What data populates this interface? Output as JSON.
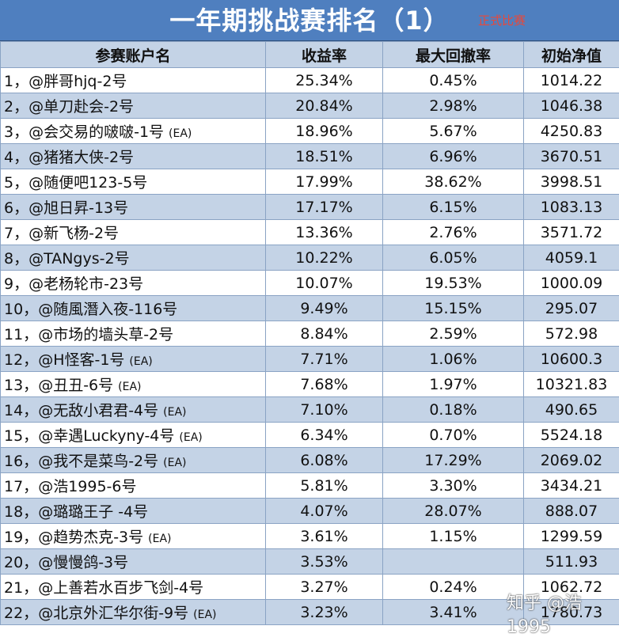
{
  "title": "一年期挑战赛排名（1）",
  "title_tag": "正式比赛",
  "columns": [
    "参赛账户名",
    "收益率",
    "最大回撤率",
    "初始净值"
  ],
  "rows": [
    {
      "rank": "1，",
      "account": "@胖哥hjq-2号",
      "ea": "",
      "return": "25.34%",
      "max_drawdown": "0.45%",
      "initial_nav": "1014.22"
    },
    {
      "rank": "2，",
      "account": "@单刀赴会-2号",
      "ea": "",
      "return": "20.84%",
      "max_drawdown": "2.98%",
      "initial_nav": "1046.38"
    },
    {
      "rank": "3，",
      "account": "@会交易的啵啵-1号",
      "ea": "(EA)",
      "return": "18.96%",
      "max_drawdown": "5.67%",
      "initial_nav": "4250.83"
    },
    {
      "rank": "4，",
      "account": "@猪猪大侠-2号",
      "ea": "",
      "return": "18.51%",
      "max_drawdown": "6.96%",
      "initial_nav": "3670.51"
    },
    {
      "rank": "5，",
      "account": "@随便吧123-5号",
      "ea": "",
      "return": "17.99%",
      "max_drawdown": "38.62%",
      "initial_nav": "3998.51"
    },
    {
      "rank": "6，",
      "account": "@旭日昇-13号",
      "ea": "",
      "return": "17.17%",
      "max_drawdown": "6.15%",
      "initial_nav": "1083.13"
    },
    {
      "rank": "7，",
      "account": "@新飞杨-2号",
      "ea": "",
      "return": "13.36%",
      "max_drawdown": "2.76%",
      "initial_nav": "3571.72"
    },
    {
      "rank": "8，",
      "account": "@TANgys-2号",
      "ea": "",
      "return": "10.22%",
      "max_drawdown": "6.05%",
      "initial_nav": "4059.1"
    },
    {
      "rank": "9，",
      "account": "@老杨轮市-23号",
      "ea": "",
      "return": "10.07%",
      "max_drawdown": "19.53%",
      "initial_nav": "1000.09"
    },
    {
      "rank": "10，",
      "account": "@随風潛入夜-116号",
      "ea": "",
      "return": "9.49%",
      "max_drawdown": "15.15%",
      "initial_nav": "295.07"
    },
    {
      "rank": "11，",
      "account": "@市场的墙头草-2号",
      "ea": "",
      "return": "8.84%",
      "max_drawdown": "2.59%",
      "initial_nav": "572.98"
    },
    {
      "rank": "12，",
      "account": "@H怪客-1号",
      "ea": "(EA)",
      "return": "7.71%",
      "max_drawdown": "1.06%",
      "initial_nav": "10600.3"
    },
    {
      "rank": "13，",
      "account": "@丑丑-6号",
      "ea": "(EA)",
      "return": "7.68%",
      "max_drawdown": "1.97%",
      "initial_nav": "10321.83"
    },
    {
      "rank": "14，",
      "account": "@无敌小君君-4号",
      "ea": "(EA)",
      "return": "7.10%",
      "max_drawdown": "0.18%",
      "initial_nav": "490.65"
    },
    {
      "rank": "15，",
      "account": "@幸遇Luckyny-4号",
      "ea": "(EA)",
      "return": "6.34%",
      "max_drawdown": "0.70%",
      "initial_nav": "5524.18"
    },
    {
      "rank": "16，",
      "account": "@我不是菜鸟-2号",
      "ea": "(EA)",
      "return": "6.08%",
      "max_drawdown": "17.29%",
      "initial_nav": "2069.02"
    },
    {
      "rank": "17，",
      "account": "@浩1995-6号",
      "ea": "",
      "return": "5.81%",
      "max_drawdown": "3.30%",
      "initial_nav": "3434.21"
    },
    {
      "rank": "18，",
      "account": "@璐璐王子 -4号",
      "ea": "",
      "return": "4.07%",
      "max_drawdown": "28.07%",
      "initial_nav": "888.07"
    },
    {
      "rank": "19，",
      "account": "@趋势杰克-3号",
      "ea": "(EA)",
      "return": "3.61%",
      "max_drawdown": "1.15%",
      "initial_nav": "1299.59"
    },
    {
      "rank": "20，",
      "account": "@慢慢鸽-3号",
      "ea": "",
      "return": "3.53%",
      "max_drawdown": "",
      "initial_nav": "511.93"
    },
    {
      "rank": "21，",
      "account": "@上善若水百步飞剑-4号",
      "ea": "",
      "return": "3.27%",
      "max_drawdown": "0.24%",
      "initial_nav": "1062.72"
    },
    {
      "rank": "22，",
      "account": "@北京外汇华尔街-9号",
      "ea": "(EA)",
      "return": "3.23%",
      "max_drawdown": "3.41%",
      "initial_nav": "1780.73"
    }
  ],
  "watermark": "知乎 @浩1995",
  "colors": {
    "title_bg": "#4f7fbf",
    "header_bg": "#c4d3e6",
    "stripe_bg": "#c4d3e6",
    "tag_color": "#e8483a"
  }
}
